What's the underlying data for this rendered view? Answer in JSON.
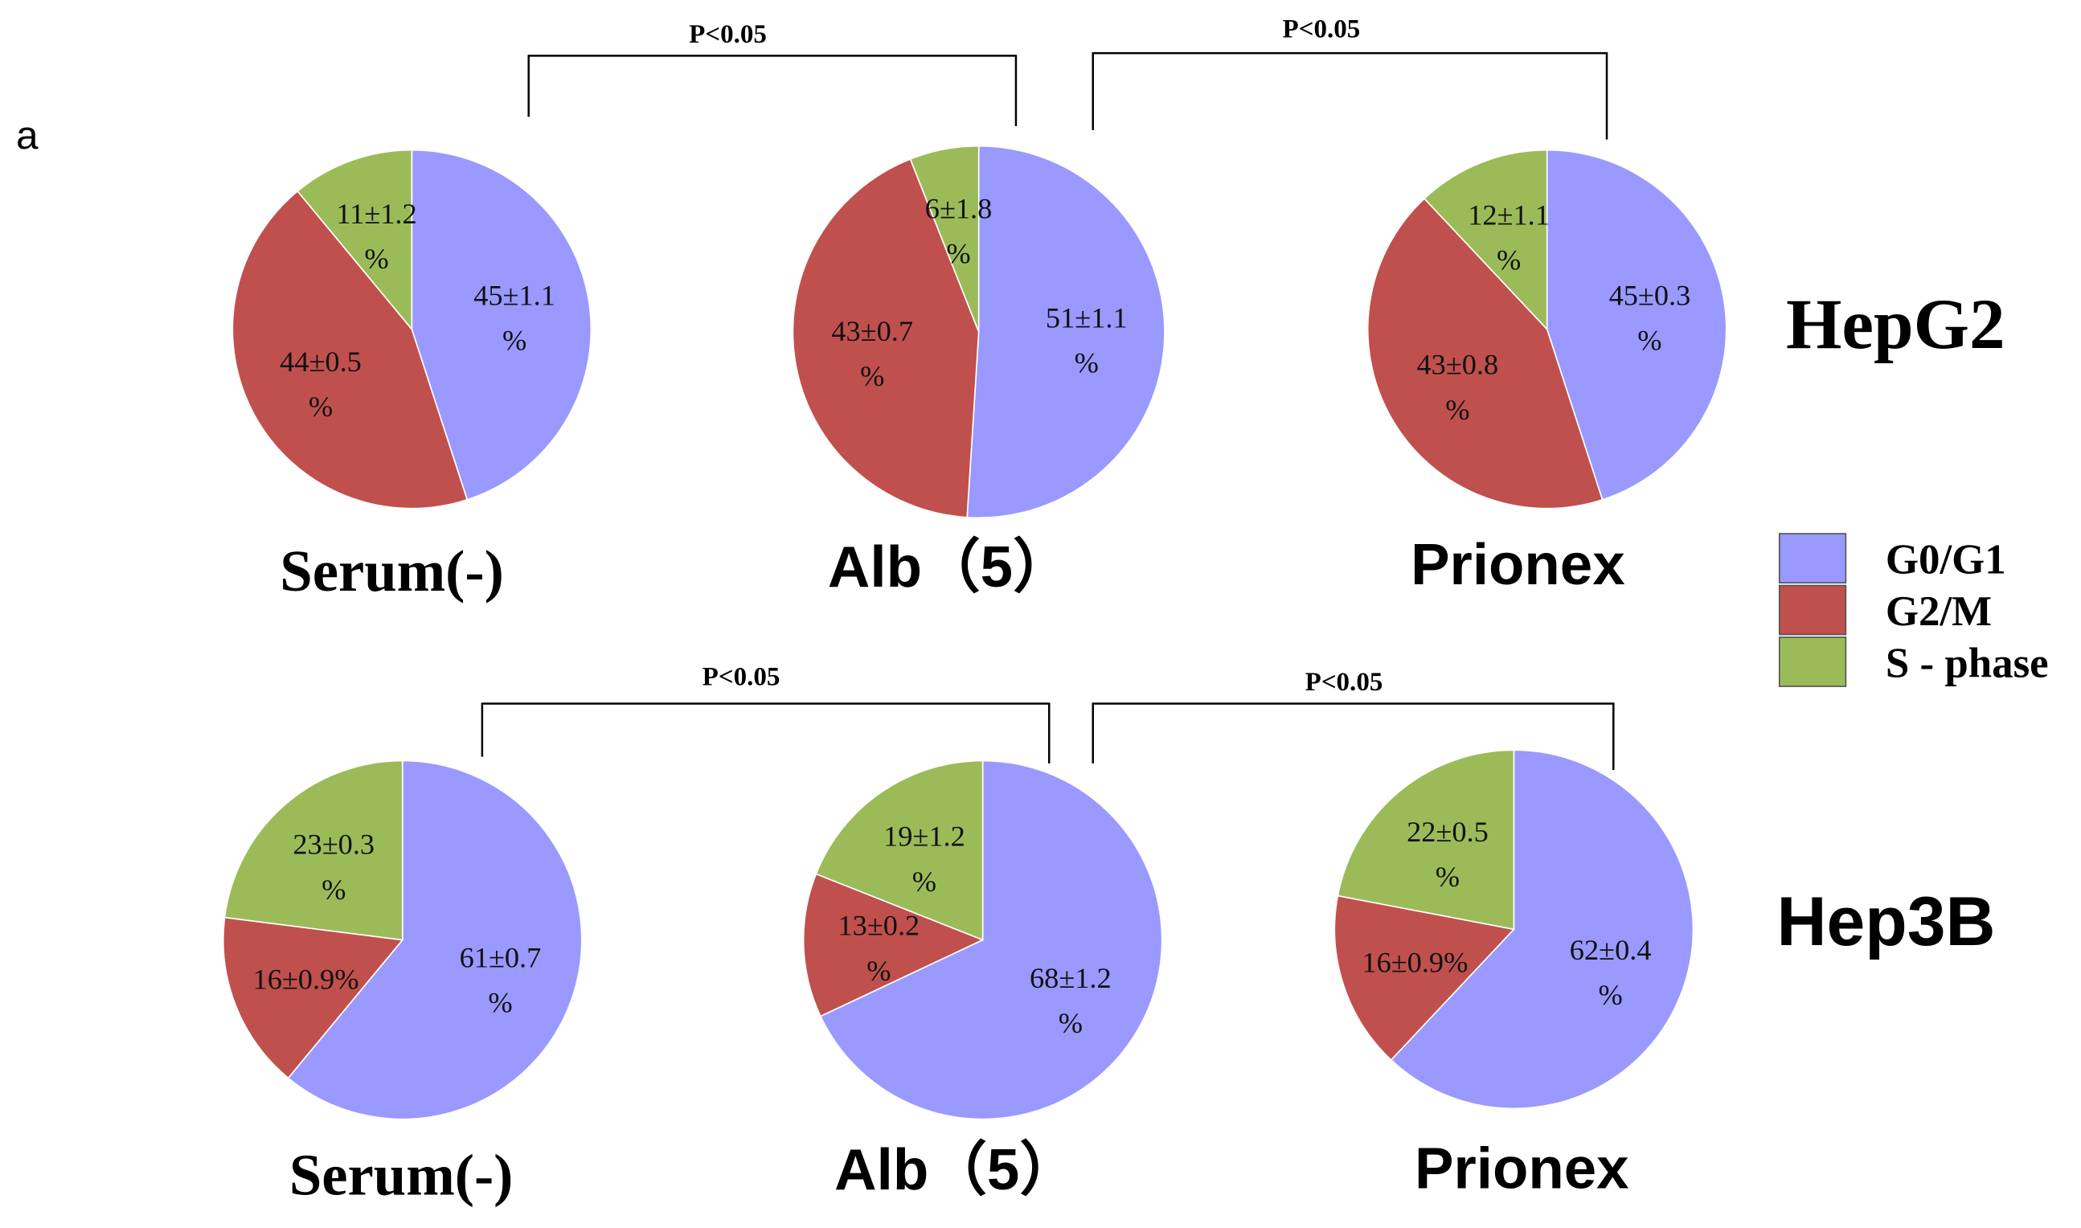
{
  "panel_label": "a",
  "row_labels": [
    "HepG2",
    "Hep3B"
  ],
  "annotations": [
    "P<0.05",
    "P<0.05",
    "P<0.05",
    "P<0.05"
  ],
  "chart_data": [
    {
      "type": "pie",
      "title": "Serum(-)",
      "categories": [
        "G0/G1",
        "G2/M",
        "S - phase"
      ],
      "colors": [
        "#9999ff",
        "#c0504d",
        "#9bbb59"
      ],
      "values": [
        45,
        44,
        11
      ],
      "value_labels": [
        "45±1.1\n%",
        "44±0.5\n%",
        "11±1.2\n%"
      ]
    },
    {
      "type": "pie",
      "title": "Alb（5）",
      "categories": [
        "G0/G1",
        "G2/M",
        "S - phase"
      ],
      "colors": [
        "#9999ff",
        "#c0504d",
        "#9bbb59"
      ],
      "values": [
        51,
        43,
        6
      ],
      "value_labels": [
        "51±1.1\n%",
        "43±0.7\n%",
        "6±1.8\n%"
      ]
    },
    {
      "type": "pie",
      "title": "Prionex",
      "categories": [
        "G0/G1",
        "G2/M",
        "S - phase"
      ],
      "colors": [
        "#9999ff",
        "#c0504d",
        "#9bbb59"
      ],
      "values": [
        45,
        43,
        12
      ],
      "value_labels": [
        "45±0.3\n%",
        "43±0.8\n%",
        "12±1.1\n%"
      ]
    },
    {
      "type": "pie",
      "title": "Serum(-)",
      "categories": [
        "G0/G1",
        "G2/M",
        "S - phase"
      ],
      "colors": [
        "#9999ff",
        "#c0504d",
        "#9bbb59"
      ],
      "values": [
        61,
        16,
        23
      ],
      "value_labels": [
        "61±0.7\n%",
        "16±0.9%",
        "23±0.3\n%"
      ]
    },
    {
      "type": "pie",
      "title": "Alb（5）",
      "categories": [
        "G0/G1",
        "G2/M",
        "S - phase"
      ],
      "colors": [
        "#9999ff",
        "#c0504d",
        "#9bbb59"
      ],
      "values": [
        68,
        13,
        19
      ],
      "value_labels": [
        "68±1.2\n%",
        "13±0.2\n%",
        "19±1.2\n%"
      ]
    },
    {
      "type": "pie",
      "title": "Prionex",
      "categories": [
        "G0/G1",
        "G2/M",
        "S - phase"
      ],
      "colors": [
        "#9999ff",
        "#c0504d",
        "#9bbb59"
      ],
      "values": [
        62,
        16,
        22
      ],
      "value_labels": [
        "62±0.4\n%",
        "16±0.9%",
        "22±0.5\n%"
      ]
    }
  ]
}
